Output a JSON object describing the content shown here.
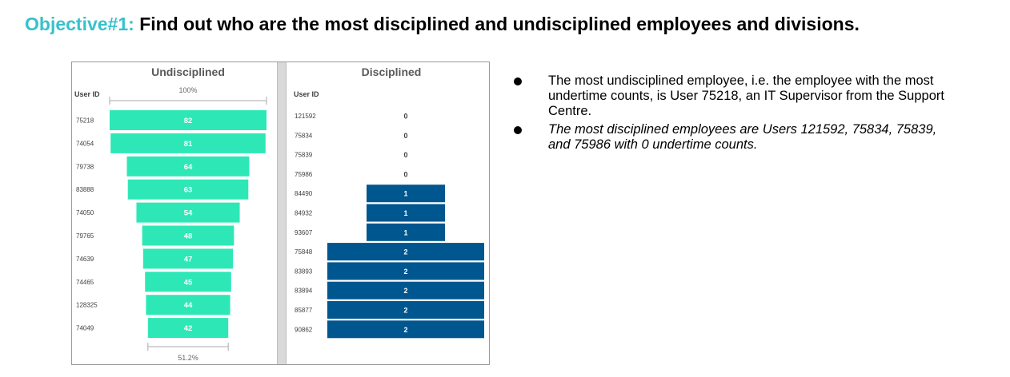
{
  "title": {
    "highlight": "Objective#1:",
    "text": "Find out who are the most disciplined and undisciplined employees and divisions."
  },
  "colors": {
    "highlight": "#37c1cc",
    "undisciplined_bar": "#2de8b6",
    "disciplined_bar": "#00568f"
  },
  "chart_data": [
    {
      "type": "bar",
      "subtype": "funnel",
      "title": "Undisciplined",
      "ylabel": "User ID",
      "top_percent": "100%",
      "bottom_percent": "51.2%",
      "categories": [
        "75218",
        "74054",
        "79738",
        "83888",
        "74050",
        "79765",
        "74639",
        "74465",
        "128325",
        "74049"
      ],
      "values": [
        82,
        81,
        64,
        63,
        54,
        48,
        47,
        45,
        44,
        42
      ]
    },
    {
      "type": "bar",
      "subtype": "funnel",
      "title": "Disciplined",
      "ylabel": "User ID",
      "categories": [
        "121592",
        "75834",
        "75839",
        "75986",
        "84490",
        "84932",
        "93607",
        "75848",
        "83893",
        "83894",
        "85877",
        "90862"
      ],
      "values": [
        0,
        0,
        0,
        0,
        1,
        1,
        1,
        2,
        2,
        2,
        2,
        2
      ]
    }
  ],
  "notes": [
    "The most undisciplined employee, i.e. the employee with the most undertime counts, is User 75218, an IT Supervisor from the Support Centre.",
    "The most disciplined employees are Users 121592, 75834, 75839, and 75986 with 0 undertime counts."
  ]
}
